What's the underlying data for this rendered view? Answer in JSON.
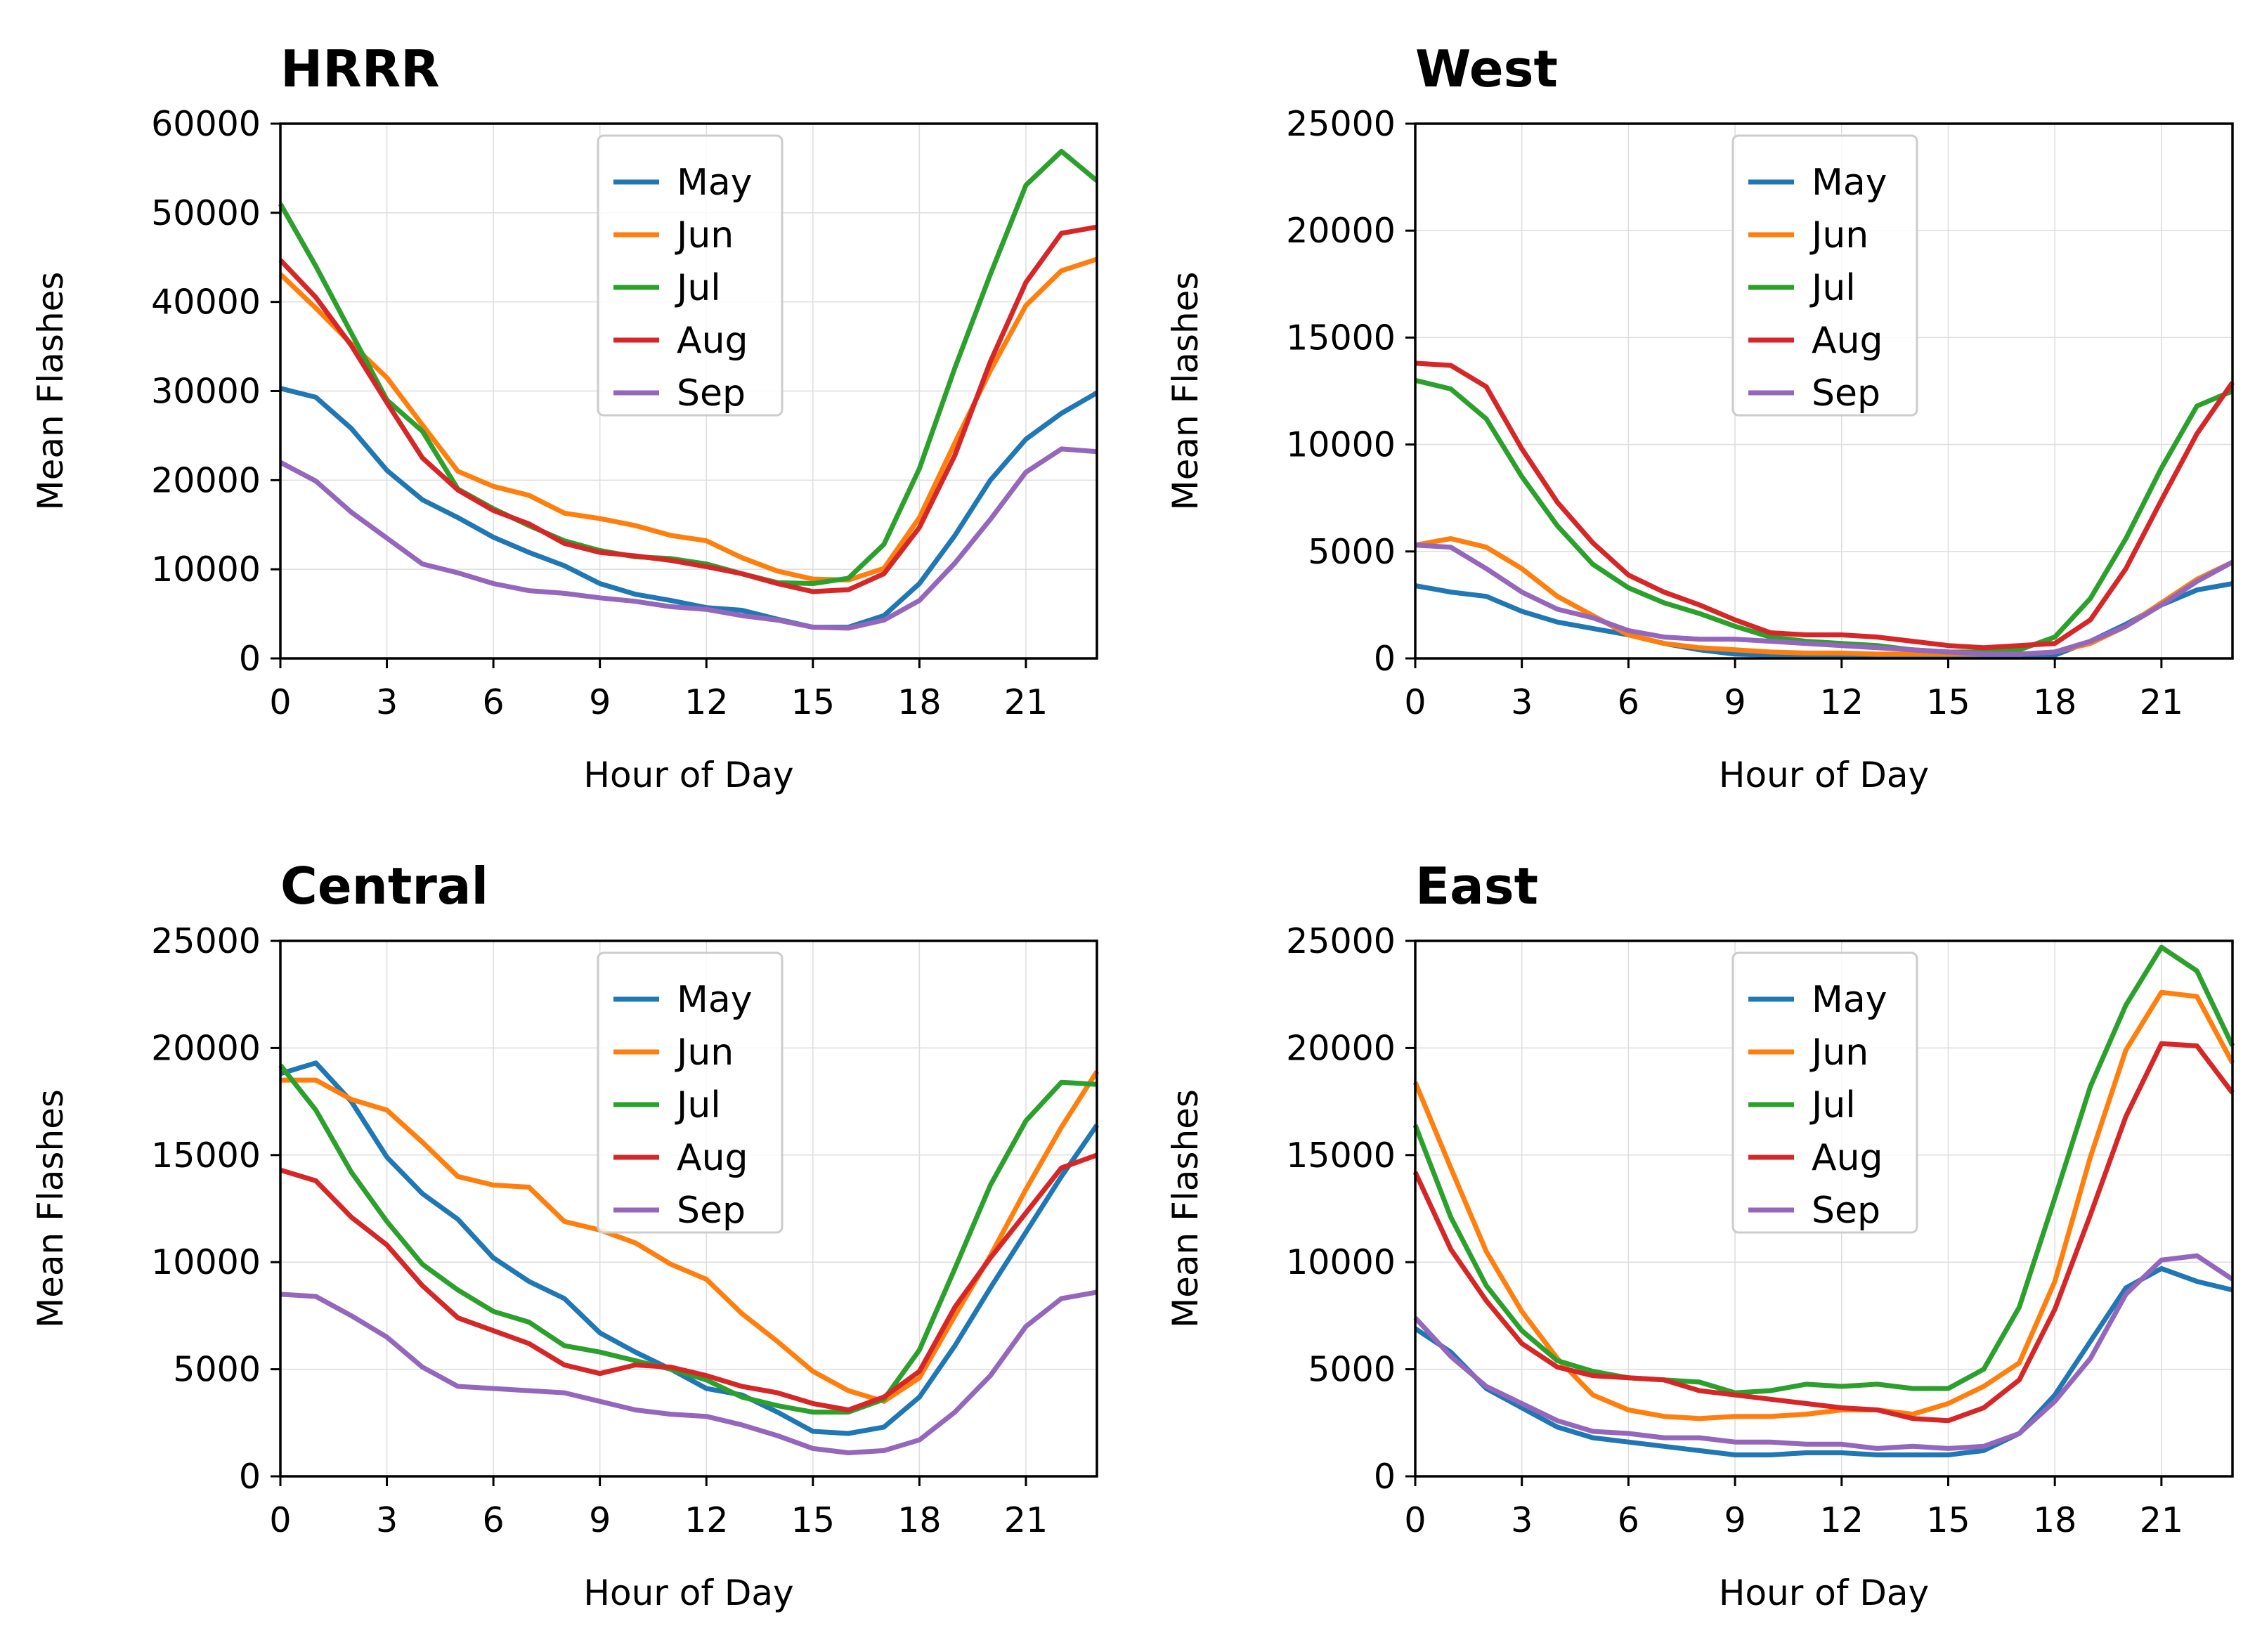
{
  "chart_data": [
    {
      "type": "line",
      "title": "HRRR",
      "xlabel": "Hour of Day",
      "ylabel": "Mean Flashes",
      "xlim": [
        0,
        23
      ],
      "ylim": [
        0,
        60000
      ],
      "xticks": [
        "0",
        "3",
        "6",
        "9",
        "12",
        "15",
        "18",
        "21"
      ],
      "yticks": [
        "0",
        "10000",
        "20000",
        "30000",
        "40000",
        "50000",
        "60000"
      ],
      "grid": true,
      "legend": "upper center",
      "x": [
        0,
        1,
        2,
        3,
        4,
        5,
        6,
        7,
        8,
        9,
        10,
        11,
        12,
        13,
        14,
        15,
        16,
        17,
        18,
        19,
        20,
        21,
        22,
        23
      ],
      "series": [
        {
          "name": "May",
          "color": "#1f77b4",
          "values": [
            30300,
            29300,
            25800,
            21100,
            17800,
            15800,
            13600,
            11900,
            10400,
            8400,
            7200,
            6500,
            5700,
            5400,
            4400,
            3500,
            3500,
            4800,
            8400,
            13800,
            20000,
            24600,
            27500,
            29800
          ]
        },
        {
          "name": "Jun",
          "color": "#ff7f0e",
          "values": [
            43100,
            39300,
            35300,
            31500,
            26200,
            21000,
            19300,
            18300,
            16300,
            15700,
            14900,
            13800,
            13200,
            11300,
            9800,
            8900,
            8800,
            10100,
            15800,
            24200,
            32300,
            39600,
            43500,
            44800
          ]
        },
        {
          "name": "Jul",
          "color": "#2ca02c",
          "values": [
            51000,
            44000,
            36500,
            29000,
            25500,
            19000,
            16800,
            14900,
            13200,
            12100,
            11400,
            11200,
            10600,
            9500,
            8500,
            8400,
            9000,
            12800,
            21300,
            32600,
            43100,
            53100,
            56900,
            53600
          ]
        },
        {
          "name": "Aug",
          "color": "#d62728",
          "values": [
            44700,
            40500,
            35100,
            28700,
            22500,
            18900,
            16600,
            15100,
            12900,
            11900,
            11500,
            11000,
            10300,
            9500,
            8400,
            7500,
            7700,
            9500,
            14700,
            22800,
            33300,
            42200,
            47700,
            48400
          ]
        },
        {
          "name": "Sep",
          "color": "#9467bd",
          "values": [
            22000,
            19900,
            16400,
            13500,
            10600,
            9600,
            8400,
            7600,
            7300,
            6800,
            6400,
            5800,
            5500,
            4800,
            4300,
            3500,
            3400,
            4300,
            6500,
            10700,
            15600,
            20900,
            23500,
            23200
          ]
        }
      ]
    },
    {
      "type": "line",
      "title": "West",
      "xlabel": "Hour of Day",
      "ylabel": "Mean Flashes",
      "xlim": [
        0,
        23
      ],
      "ylim": [
        0,
        25000
      ],
      "xticks": [
        "0",
        "3",
        "6",
        "9",
        "12",
        "15",
        "18",
        "21"
      ],
      "yticks": [
        "0",
        "5000",
        "10000",
        "15000",
        "20000",
        "25000"
      ],
      "grid": true,
      "legend": "upper center",
      "x": [
        0,
        1,
        2,
        3,
        4,
        5,
        6,
        7,
        8,
        9,
        10,
        11,
        12,
        13,
        14,
        15,
        16,
        17,
        18,
        19,
        20,
        21,
        22,
        23
      ],
      "series": [
        {
          "name": "May",
          "color": "#1f77b4",
          "values": [
            3400,
            3100,
            2900,
            2200,
            1700,
            1400,
            1100,
            700,
            400,
            200,
            150,
            120,
            100,
            100,
            80,
            80,
            70,
            80,
            150,
            800,
            1600,
            2500,
            3200,
            3500
          ]
        },
        {
          "name": "Jun",
          "color": "#ff7f0e",
          "values": [
            5300,
            5600,
            5200,
            4200,
            2900,
            2000,
            1100,
            700,
            500,
            400,
            300,
            250,
            250,
            200,
            200,
            200,
            200,
            200,
            300,
            700,
            1500,
            2600,
            3700,
            4500
          ]
        },
        {
          "name": "Jul",
          "color": "#2ca02c",
          "values": [
            13000,
            12600,
            11200,
            8500,
            6200,
            4400,
            3300,
            2600,
            2100,
            1500,
            1000,
            800,
            700,
            600,
            400,
            300,
            300,
            400,
            1000,
            2800,
            5600,
            8900,
            11800,
            12500
          ]
        },
        {
          "name": "Aug",
          "color": "#d62728",
          "values": [
            13800,
            13700,
            12700,
            9800,
            7300,
            5400,
            3900,
            3100,
            2500,
            1800,
            1200,
            1100,
            1100,
            1000,
            800,
            600,
            500,
            600,
            700,
            1800,
            4200,
            7400,
            10500,
            12900
          ]
        },
        {
          "name": "Sep",
          "color": "#9467bd",
          "values": [
            5300,
            5200,
            4200,
            3100,
            2300,
            1900,
            1300,
            1000,
            900,
            900,
            800,
            700,
            600,
            500,
            400,
            300,
            200,
            200,
            300,
            800,
            1500,
            2500,
            3600,
            4500
          ]
        }
      ]
    },
    {
      "type": "line",
      "title": "Central",
      "xlabel": "Hour of Day",
      "ylabel": "Mean Flashes",
      "xlim": [
        0,
        23
      ],
      "ylim": [
        0,
        25000
      ],
      "xticks": [
        "0",
        "3",
        "6",
        "9",
        "12",
        "15",
        "18",
        "21"
      ],
      "yticks": [
        "0",
        "5000",
        "10000",
        "15000",
        "20000",
        "25000"
      ],
      "grid": true,
      "legend": "upper center",
      "x": [
        0,
        1,
        2,
        3,
        4,
        5,
        6,
        7,
        8,
        9,
        10,
        11,
        12,
        13,
        14,
        15,
        16,
        17,
        18,
        19,
        20,
        21,
        22,
        23
      ],
      "series": [
        {
          "name": "May",
          "color": "#1f77b4",
          "values": [
            18800,
            19300,
            17500,
            14900,
            13200,
            12000,
            10200,
            9100,
            8300,
            6700,
            5800,
            5000,
            4100,
            3800,
            3000,
            2100,
            2000,
            2300,
            3700,
            6100,
            8800,
            11400,
            14000,
            16400
          ]
        },
        {
          "name": "Jun",
          "color": "#ff7f0e",
          "values": [
            18500,
            18500,
            17600,
            17100,
            15600,
            14000,
            13600,
            13500,
            11900,
            11500,
            10900,
            9900,
            9200,
            7600,
            6300,
            4900,
            4000,
            3500,
            4600,
            7500,
            10300,
            13400,
            16300,
            18900
          ]
        },
        {
          "name": "Jul",
          "color": "#2ca02c",
          "values": [
            19200,
            17100,
            14200,
            11900,
            9900,
            8700,
            7700,
            7200,
            6100,
            5800,
            5400,
            5000,
            4500,
            3700,
            3300,
            3000,
            3000,
            3600,
            5900,
            9700,
            13600,
            16600,
            18400,
            18300
          ]
        },
        {
          "name": "Aug",
          "color": "#d62728",
          "values": [
            14300,
            13800,
            12100,
            10800,
            8900,
            7400,
            6800,
            6200,
            5200,
            4800,
            5200,
            5100,
            4700,
            4200,
            3900,
            3400,
            3100,
            3700,
            4900,
            7900,
            10200,
            12300,
            14400,
            15000
          ]
        },
        {
          "name": "Sep",
          "color": "#9467bd",
          "values": [
            8500,
            8400,
            7500,
            6500,
            5100,
            4200,
            4100,
            4000,
            3900,
            3500,
            3100,
            2900,
            2800,
            2400,
            1900,
            1300,
            1100,
            1200,
            1700,
            3000,
            4700,
            7000,
            8300,
            8600
          ]
        }
      ]
    },
    {
      "type": "line",
      "title": "East",
      "xlabel": "Hour of Day",
      "ylabel": "Mean Flashes",
      "xlim": [
        0,
        23
      ],
      "ylim": [
        0,
        25000
      ],
      "xticks": [
        "0",
        "3",
        "6",
        "9",
        "12",
        "15",
        "18",
        "21"
      ],
      "yticks": [
        "0",
        "5000",
        "10000",
        "15000",
        "20000",
        "25000"
      ],
      "grid": true,
      "legend": "upper center",
      "x": [
        0,
        1,
        2,
        3,
        4,
        5,
        6,
        7,
        8,
        9,
        10,
        11,
        12,
        13,
        14,
        15,
        16,
        17,
        18,
        19,
        20,
        21,
        22,
        23
      ],
      "series": [
        {
          "name": "May",
          "color": "#1f77b4",
          "values": [
            6900,
            5800,
            4100,
            3200,
            2300,
            1800,
            1600,
            1400,
            1200,
            1000,
            1000,
            1100,
            1100,
            1000,
            1000,
            1000,
            1200,
            2000,
            3800,
            6300,
            8800,
            9700,
            9100,
            8700
          ]
        },
        {
          "name": "Jun",
          "color": "#ff7f0e",
          "values": [
            18400,
            14400,
            10500,
            7700,
            5500,
            3800,
            3100,
            2800,
            2700,
            2800,
            2800,
            2900,
            3100,
            3100,
            2900,
            3400,
            4200,
            5300,
            9100,
            14900,
            19900,
            22600,
            22400,
            19300
          ]
        },
        {
          "name": "Jul",
          "color": "#2ca02c",
          "values": [
            16400,
            12100,
            8900,
            6800,
            5400,
            4900,
            4600,
            4500,
            4400,
            3900,
            4000,
            4300,
            4200,
            4300,
            4100,
            4100,
            5000,
            7900,
            13000,
            18200,
            22000,
            24700,
            23600,
            20100
          ]
        },
        {
          "name": "Aug",
          "color": "#d62728",
          "values": [
            14200,
            10600,
            8200,
            6200,
            5100,
            4700,
            4600,
            4500,
            4000,
            3800,
            3600,
            3400,
            3200,
            3100,
            2700,
            2600,
            3200,
            4500,
            7800,
            12200,
            16800,
            20200,
            20100,
            17900
          ]
        },
        {
          "name": "Sep",
          "color": "#9467bd",
          "values": [
            7400,
            5600,
            4200,
            3400,
            2600,
            2100,
            2000,
            1800,
            1800,
            1600,
            1600,
            1500,
            1500,
            1300,
            1400,
            1300,
            1400,
            2000,
            3500,
            5500,
            8500,
            10100,
            10300,
            9200
          ]
        }
      ]
    }
  ]
}
